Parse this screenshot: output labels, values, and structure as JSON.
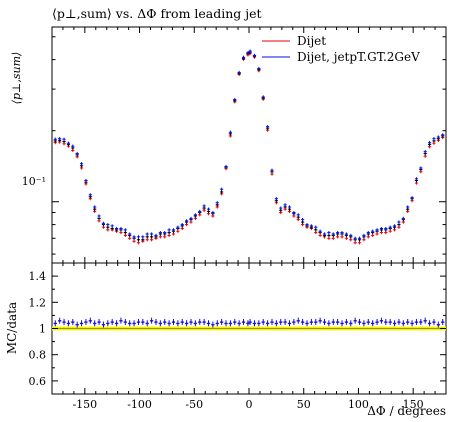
{
  "chart_data": [
    {
      "type": "scatter",
      "title": "⟨p⊥,sum⟩ vs. ΔΦ from leading jet",
      "ylabel": "⟨p⊥,sum⟩",
      "xlabel": "",
      "xlim": [
        -180,
        180
      ],
      "ylim": [
        0.055,
        0.55
      ],
      "yscale": "log",
      "y_tick_labels": [
        {
          "value": 0.1,
          "label": "10⁻¹"
        }
      ],
      "x_tick_labels": [],
      "grid": false,
      "legend_position": "top-right",
      "x": [
        -177,
        -173,
        -169,
        -165,
        -161,
        -157,
        -153,
        -149,
        -145,
        -141,
        -137,
        -133,
        -129,
        -125,
        -121,
        -117,
        -113,
        -109,
        -105,
        -101,
        -97,
        -93,
        -89,
        -85,
        -81,
        -77,
        -73,
        -69,
        -65,
        -61,
        -57,
        -53,
        -49,
        -45,
        -41,
        -37,
        -33,
        -29,
        -25,
        -21,
        -17,
        -13,
        -9,
        -5,
        -1,
        1,
        5,
        9,
        13,
        17,
        21,
        25,
        29,
        33,
        37,
        41,
        45,
        49,
        53,
        57,
        61,
        65,
        69,
        73,
        77,
        81,
        85,
        89,
        93,
        97,
        101,
        105,
        109,
        113,
        117,
        121,
        125,
        129,
        133,
        137,
        141,
        145,
        149,
        153,
        157,
        161,
        165,
        169,
        173,
        177
      ],
      "series": [
        {
          "name": "Dijet",
          "color": "#e8000b",
          "values": [
            0.178,
            0.179,
            0.176,
            0.172,
            0.165,
            0.155,
            0.139,
            0.119,
            0.103,
            0.091,
            0.083,
            0.078,
            0.076,
            0.076,
            0.075,
            0.074,
            0.072,
            0.07,
            0.068,
            0.067,
            0.068,
            0.069,
            0.069,
            0.07,
            0.071,
            0.071,
            0.072,
            0.073,
            0.075,
            0.077,
            0.08,
            0.082,
            0.085,
            0.088,
            0.092,
            0.089,
            0.087,
            0.095,
            0.108,
            0.138,
            0.19,
            0.265,
            0.346,
            0.401,
            0.419,
            0.424,
            0.41,
            0.359,
            0.272,
            0.201,
            0.131,
            0.099,
            0.09,
            0.093,
            0.091,
            0.087,
            0.084,
            0.08,
            0.078,
            0.077,
            0.074,
            0.072,
            0.071,
            0.07,
            0.07,
            0.071,
            0.071,
            0.07,
            0.069,
            0.067,
            0.067,
            0.069,
            0.071,
            0.072,
            0.073,
            0.074,
            0.074,
            0.075,
            0.076,
            0.078,
            0.082,
            0.091,
            0.101,
            0.12,
            0.134,
            0.156,
            0.171,
            0.177,
            0.182,
            0.187
          ]
        },
        {
          "name": "Dijet, jetpT.GT.2GeV",
          "color": "#0011ee",
          "values": [
            0.184,
            0.185,
            0.184,
            0.177,
            0.172,
            0.16,
            0.145,
            0.123,
            0.107,
            0.095,
            0.087,
            0.081,
            0.08,
            0.079,
            0.077,
            0.077,
            0.076,
            0.073,
            0.071,
            0.071,
            0.071,
            0.073,
            0.073,
            0.072,
            0.074,
            0.074,
            0.076,
            0.076,
            0.078,
            0.08,
            0.083,
            0.085,
            0.088,
            0.091,
            0.096,
            0.093,
            0.09,
            0.099,
            0.113,
            0.141,
            0.197,
            0.271,
            0.353,
            0.409,
            0.428,
            0.435,
            0.417,
            0.367,
            0.278,
            0.208,
            0.136,
            0.103,
            0.094,
            0.097,
            0.095,
            0.09,
            0.088,
            0.084,
            0.08,
            0.079,
            0.078,
            0.075,
            0.073,
            0.074,
            0.073,
            0.074,
            0.074,
            0.073,
            0.072,
            0.07,
            0.07,
            0.072,
            0.074,
            0.075,
            0.076,
            0.077,
            0.077,
            0.078,
            0.079,
            0.082,
            0.085,
            0.095,
            0.104,
            0.125,
            0.139,
            0.163,
            0.178,
            0.185,
            0.188,
            0.192
          ]
        },
        {
          "name": "",
          "color": "#000000",
          "values": [
            0.181,
            0.182,
            0.18,
            0.175,
            0.169,
            0.158,
            0.142,
            0.121,
            0.105,
            0.093,
            0.085,
            0.08,
            0.078,
            0.077,
            0.076,
            0.076,
            0.074,
            0.072,
            0.07,
            0.069,
            0.069,
            0.071,
            0.071,
            0.071,
            0.073,
            0.073,
            0.074,
            0.075,
            0.077,
            0.079,
            0.082,
            0.084,
            0.087,
            0.09,
            0.094,
            0.091,
            0.089,
            0.097,
            0.11,
            0.14,
            0.194,
            0.268,
            0.35,
            0.405,
            0.424,
            0.43,
            0.414,
            0.363,
            0.275,
            0.205,
            0.134,
            0.101,
            0.092,
            0.095,
            0.093,
            0.089,
            0.086,
            0.082,
            0.079,
            0.078,
            0.076,
            0.074,
            0.072,
            0.072,
            0.072,
            0.073,
            0.073,
            0.072,
            0.071,
            0.069,
            0.069,
            0.071,
            0.073,
            0.074,
            0.075,
            0.076,
            0.076,
            0.077,
            0.078,
            0.08,
            0.084,
            0.093,
            0.103,
            0.123,
            0.137,
            0.16,
            0.175,
            0.181,
            0.185,
            0.19
          ]
        }
      ]
    },
    {
      "type": "scatter",
      "ylabel": "MC/data",
      "xlabel": "ΔΦ / degrees",
      "xlim": [
        -180,
        180
      ],
      "ylim": [
        0.5,
        1.5
      ],
      "y_tick_labels": [
        0.6,
        0.8,
        1,
        1.2,
        1.4
      ],
      "x_tick_labels": [
        -150,
        -100,
        -50,
        0,
        50,
        100,
        150
      ],
      "grid": false,
      "reference_band": {
        "y": 1.0,
        "band": [
          0.985,
          1.015
        ],
        "color": "#ffff00",
        "line_color": "#9a9a00"
      },
      "series": [
        {
          "name": "Dijet",
          "color": "#e8000b",
          "values_offset_from_blue": -0.003
        },
        {
          "name": "Dijet, jetpT.GT.2GeV",
          "color": "#0011ee",
          "values": [
            1.04,
            1.06,
            1.05,
            1.04,
            1.05,
            1.03,
            1.04,
            1.05,
            1.06,
            1.04,
            1.05,
            1.03,
            1.04,
            1.05,
            1.04,
            1.06,
            1.05,
            1.04,
            1.04,
            1.05,
            1.05,
            1.04,
            1.06,
            1.05,
            1.04,
            1.05,
            1.04,
            1.05,
            1.04,
            1.05,
            1.04,
            1.05,
            1.04,
            1.05,
            1.05,
            1.04,
            1.03,
            1.04,
            1.05,
            1.04,
            1.04,
            1.05,
            1.04,
            1.05,
            1.04,
            1.05,
            1.04,
            1.04,
            1.05,
            1.04,
            1.05,
            1.04,
            1.05,
            1.05,
            1.04,
            1.05,
            1.06,
            1.05,
            1.04,
            1.05,
            1.05,
            1.06,
            1.05,
            1.04,
            1.05,
            1.05,
            1.04,
            1.05,
            1.04,
            1.06,
            1.05,
            1.04,
            1.05,
            1.04,
            1.05,
            1.06,
            1.05,
            1.05,
            1.04,
            1.05,
            1.04,
            1.05,
            1.04,
            1.05,
            1.05,
            1.06,
            1.04,
            1.05,
            1.03,
            1.05
          ]
        }
      ]
    }
  ]
}
